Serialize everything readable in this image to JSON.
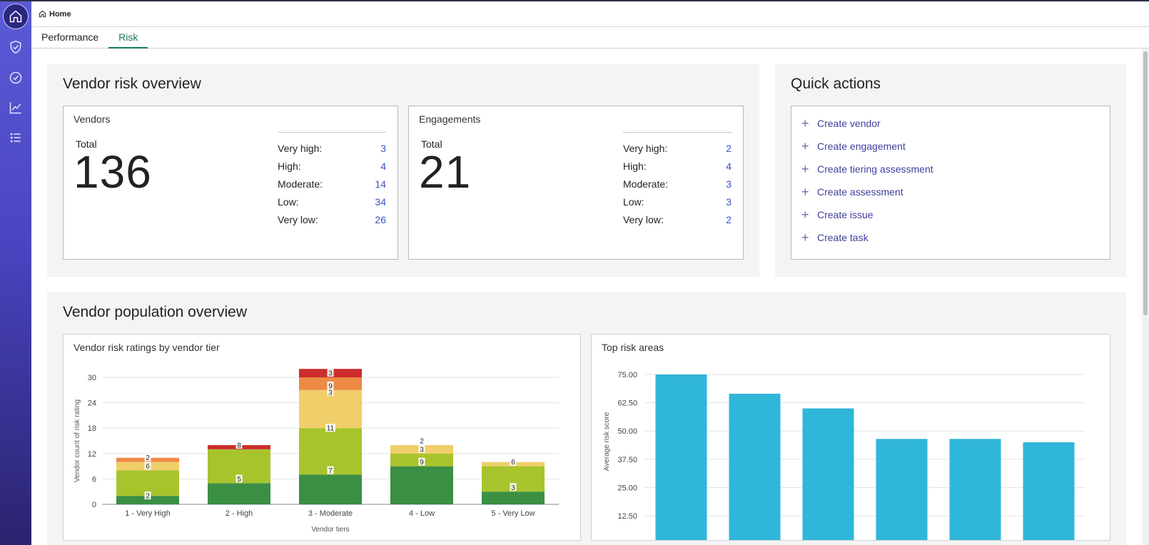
{
  "breadcrumb": {
    "home": "Home"
  },
  "sidebar": {
    "icons": [
      "home-icon",
      "shield-check-icon",
      "check-circle-icon",
      "line-chart-icon",
      "list-icon"
    ]
  },
  "tabs": [
    {
      "label": "Performance",
      "active": false
    },
    {
      "label": "Risk",
      "active": true
    }
  ],
  "vendor_risk": {
    "title": "Vendor risk overview",
    "vendors": {
      "title": "Vendors",
      "total_label": "Total",
      "total": "136",
      "rows": [
        {
          "label": "Very high:",
          "value": "3"
        },
        {
          "label": "High:",
          "value": "4"
        },
        {
          "label": "Moderate:",
          "value": "14"
        },
        {
          "label": "Low:",
          "value": "34"
        },
        {
          "label": "Very low:",
          "value": "26"
        }
      ]
    },
    "engagements": {
      "title": "Engagements",
      "total_label": "Total",
      "total": "21",
      "rows": [
        {
          "label": "Very high:",
          "value": "2"
        },
        {
          "label": "High:",
          "value": "4"
        },
        {
          "label": "Moderate:",
          "value": "3"
        },
        {
          "label": "Low:",
          "value": "3"
        },
        {
          "label": "Very low:",
          "value": "2"
        }
      ]
    }
  },
  "quick_actions": {
    "title": "Quick actions",
    "items": [
      "Create vendor",
      "Create engagement",
      "Create tiering assessment",
      "Create assessment",
      "Create issue",
      "Create task"
    ]
  },
  "population": {
    "title": "Vendor population overview"
  },
  "colors": {
    "accent": "#1c7a5c",
    "link": "#3b53c4",
    "bar_blue": "#30b6d9"
  },
  "chart_data": [
    {
      "type": "bar",
      "stacked": true,
      "title": "Vendor risk ratings by vendor tier",
      "xlabel": "Vendor tiers",
      "ylabel": "Vendor count of risk rating",
      "ylim": [
        0,
        30
      ],
      "yticks": [
        0,
        6,
        12,
        18,
        24,
        30
      ],
      "categories": [
        "1 - Very High",
        "2 - High",
        "3 - Moderate",
        "4 - Low",
        "5 - Very Low"
      ],
      "series": [
        {
          "color": "#3a8f45",
          "values": [
            2,
            5,
            7,
            9,
            3
          ]
        },
        {
          "color": "#a8c42d",
          "values": [
            6,
            8,
            11,
            3,
            6
          ]
        },
        {
          "color": "#f0cf6a",
          "values": [
            2,
            0,
            9,
            2,
            1
          ]
        },
        {
          "color": "#ec8a46",
          "values": [
            1,
            0,
            3,
            0,
            0
          ]
        },
        {
          "color": "#cc2d2d",
          "values": [
            0,
            1,
            2,
            0,
            0
          ]
        }
      ],
      "labels": [
        {
          "text": "2",
          "cat": 0,
          "y": 2
        },
        {
          "text": "6",
          "cat": 0,
          "y": 9
        },
        {
          "text": "2",
          "cat": 0,
          "y": 11
        },
        {
          "text": "5",
          "cat": 1,
          "y": 6
        },
        {
          "text": "8",
          "cat": 1,
          "y": 14
        },
        {
          "text": "7",
          "cat": 2,
          "y": 8
        },
        {
          "text": "11",
          "cat": 2,
          "y": 18
        },
        {
          "text": "3",
          "cat": 2,
          "y": 26.5
        },
        {
          "text": "9",
          "cat": 2,
          "y": 28
        },
        {
          "text": "3",
          "cat": 2,
          "y": 31
        },
        {
          "text": "9",
          "cat": 3,
          "y": 10
        },
        {
          "text": "3",
          "cat": 3,
          "y": 13
        },
        {
          "text": "2",
          "cat": 3,
          "y": 15
        },
        {
          "text": "3",
          "cat": 4,
          "y": 4
        },
        {
          "text": "6",
          "cat": 4,
          "y": 10
        }
      ]
    },
    {
      "type": "bar",
      "title": "Top risk areas",
      "ylabel": "Average risk score",
      "ylim": [
        12.5,
        75
      ],
      "yticks": [
        "12.50",
        "25.00",
        "37.50",
        "50.00",
        "62.50",
        "75.00"
      ],
      "values": [
        75,
        66.5,
        60,
        46.5,
        46.5,
        45
      ]
    }
  ]
}
